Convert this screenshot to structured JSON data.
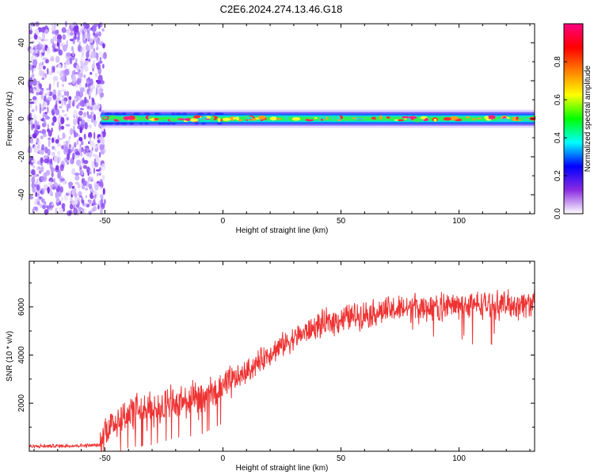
{
  "title": "C2E6.2024.274.13.46.G18",
  "chart_data": [
    {
      "type": "heatmap",
      "xlabel": "Height of straight line (km)",
      "ylabel": "Frequency (Hz)",
      "xlim": [
        -82,
        132
      ],
      "ylim": [
        -50,
        50
      ],
      "xticks": [
        -50,
        0,
        50,
        100
      ],
      "yticks": [
        -40,
        -20,
        0,
        20,
        40
      ],
      "ytick_labels": [
        "-40",
        "-20",
        "0",
        "20",
        "40"
      ],
      "noise_region_x": [
        -82,
        -52
      ],
      "signal_center_hz": 0,
      "signal_halfwidth_hz": 3,
      "colorbar": {
        "label": "Normalized spectral amplitude",
        "range": [
          0,
          1
        ],
        "ticks": [
          0.0,
          0.2,
          0.4,
          0.6,
          0.8
        ],
        "tick_labels": [
          "0.0",
          "0.2",
          "0.4",
          "0.6",
          "0.8"
        ],
        "colors": [
          "#ffffff",
          "#8a2be2",
          "#0000ff",
          "#00ffff",
          "#00ff00",
          "#ffff00",
          "#ff8000",
          "#ff0000",
          "#ff0080"
        ]
      }
    },
    {
      "type": "line",
      "xlabel": "Height of straight line (km)",
      "ylabel": "SNR (10 * v/v)",
      "xlim": [
        -82,
        132
      ],
      "ylim": [
        0,
        7900
      ],
      "xticks": [
        -50,
        0,
        50,
        100
      ],
      "yticks": [
        2000,
        4000,
        6000
      ],
      "line_color": "#ee3333",
      "trend": {
        "x": [
          -82,
          -52,
          -50,
          -40,
          -30,
          -20,
          -10,
          0,
          10,
          20,
          30,
          40,
          50,
          60,
          70,
          80,
          90,
          100,
          110,
          120,
          132
        ],
        "y": [
          200,
          250,
          900,
          1600,
          1700,
          2000,
          2100,
          2600,
          3300,
          4100,
          4700,
          5200,
          5500,
          5700,
          5850,
          5950,
          6000,
          6050,
          6100,
          6100,
          6150
        ]
      }
    }
  ]
}
